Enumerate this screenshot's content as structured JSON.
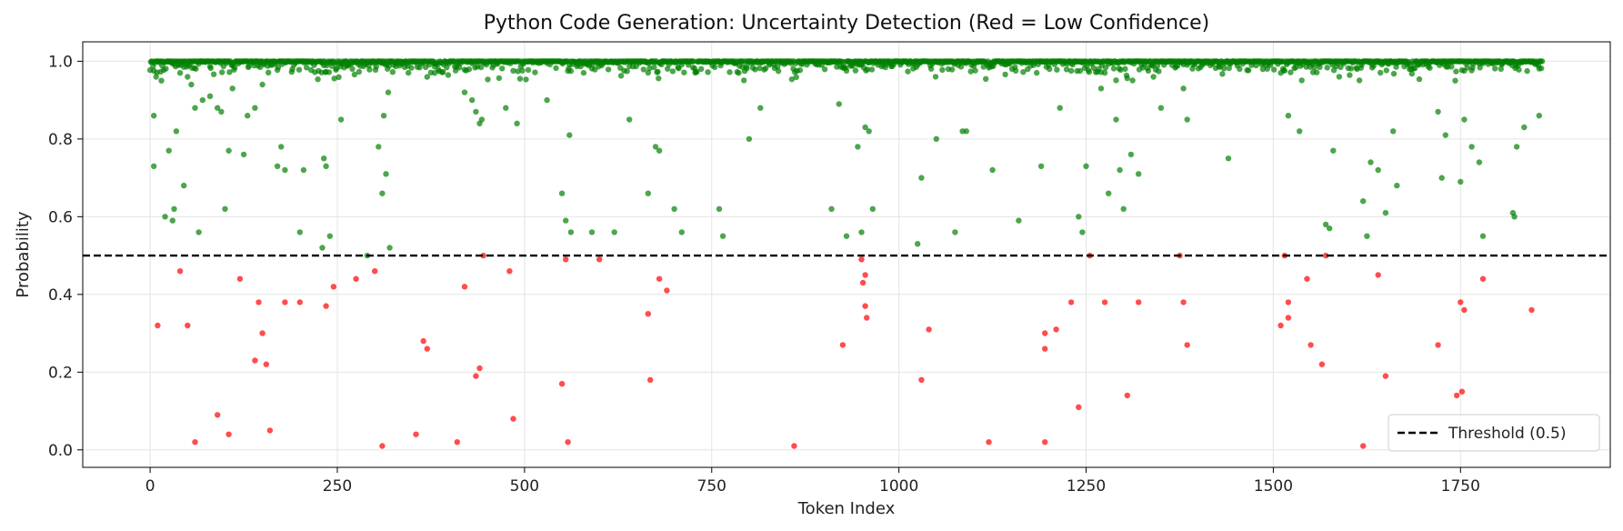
{
  "chart_data": {
    "type": "scatter",
    "title": "Python Code Generation: Uncertainty Detection (Red = Low Confidence)",
    "xlabel": "Token Index",
    "ylabel": "Probability",
    "xlim": [
      -90,
      1950
    ],
    "ylim": [
      -0.045,
      1.05
    ],
    "xticks": [
      0,
      250,
      500,
      750,
      1000,
      1250,
      1500,
      1750
    ],
    "yticks": [
      0.0,
      0.2,
      0.4,
      0.6,
      0.8,
      1.0
    ],
    "ytick_labels": [
      "0.0",
      "0.2",
      "0.4",
      "0.6",
      "0.8",
      "1.0"
    ],
    "grid": true,
    "threshold": 0.5,
    "legend": {
      "placement": "bottom-right",
      "entries": [
        "Threshold (0.5)"
      ]
    },
    "token_count": 1860,
    "colors": {
      "high_confidence": "#008000",
      "low_confidence": "#ff0000",
      "threshold": "#000000"
    },
    "series": [
      {
        "color_key": "high_confidence",
        "points": [
          [
            5,
            0.86
          ],
          [
            5,
            0.73
          ],
          [
            8,
            0.96
          ],
          [
            15,
            0.95
          ],
          [
            20,
            0.6
          ],
          [
            25,
            0.77
          ],
          [
            30,
            0.59
          ],
          [
            32,
            0.62
          ],
          [
            35,
            0.82
          ],
          [
            40,
            0.97
          ],
          [
            45,
            0.68
          ],
          [
            50,
            0.96
          ],
          [
            55,
            0.94
          ],
          [
            60,
            0.88
          ],
          [
            65,
            0.56
          ],
          [
            70,
            0.9
          ],
          [
            80,
            0.91
          ],
          [
            90,
            0.88
          ],
          [
            100,
            0.62
          ],
          [
            95,
            0.87
          ],
          [
            105,
            0.77
          ],
          [
            110,
            0.93
          ],
          [
            125,
            0.76
          ],
          [
            130,
            0.86
          ],
          [
            140,
            0.88
          ],
          [
            150,
            0.94
          ],
          [
            170,
            0.73
          ],
          [
            175,
            0.78
          ],
          [
            180,
            0.72
          ],
          [
            200,
            0.56
          ],
          [
            205,
            0.72
          ],
          [
            230,
            0.52
          ],
          [
            232,
            0.75
          ],
          [
            235,
            0.73
          ],
          [
            240,
            0.55
          ],
          [
            255,
            0.85
          ],
          [
            290,
            0.5
          ],
          [
            305,
            0.78
          ],
          [
            310,
            0.66
          ],
          [
            312,
            0.86
          ],
          [
            315,
            0.71
          ],
          [
            320,
            0.52
          ],
          [
            318,
            0.92
          ],
          [
            380,
            0.97
          ],
          [
            420,
            0.92
          ],
          [
            430,
            0.9
          ],
          [
            435,
            0.87
          ],
          [
            440,
            0.84
          ],
          [
            443,
            0.85
          ],
          [
            475,
            0.88
          ],
          [
            490,
            0.84
          ],
          [
            530,
            0.9
          ],
          [
            550,
            0.66
          ],
          [
            555,
            0.59
          ],
          [
            560,
            0.81
          ],
          [
            562,
            0.56
          ],
          [
            590,
            0.56
          ],
          [
            620,
            0.56
          ],
          [
            640,
            0.85
          ],
          [
            665,
            0.66
          ],
          [
            675,
            0.78
          ],
          [
            680,
            0.77
          ],
          [
            700,
            0.62
          ],
          [
            710,
            0.56
          ],
          [
            760,
            0.62
          ],
          [
            765,
            0.55
          ],
          [
            800,
            0.8
          ],
          [
            815,
            0.88
          ],
          [
            910,
            0.62
          ],
          [
            920,
            0.89
          ],
          [
            930,
            0.55
          ],
          [
            945,
            0.78
          ],
          [
            950,
            0.56
          ],
          [
            955,
            0.83
          ],
          [
            960,
            0.82
          ],
          [
            965,
            0.62
          ],
          [
            1025,
            0.53
          ],
          [
            1030,
            0.7
          ],
          [
            1050,
            0.8
          ],
          [
            1075,
            0.56
          ],
          [
            1085,
            0.82
          ],
          [
            1090,
            0.82
          ],
          [
            1125,
            0.72
          ],
          [
            1160,
            0.59
          ],
          [
            1190,
            0.73
          ],
          [
            1215,
            0.88
          ],
          [
            1240,
            0.6
          ],
          [
            1245,
            0.56
          ],
          [
            1250,
            0.73
          ],
          [
            1270,
            0.93
          ],
          [
            1280,
            0.66
          ],
          [
            1290,
            0.85
          ],
          [
            1295,
            0.72
          ],
          [
            1300,
            0.62
          ],
          [
            1310,
            0.76
          ],
          [
            1320,
            0.71
          ],
          [
            1340,
            0.96
          ],
          [
            1350,
            0.88
          ],
          [
            1380,
            0.93
          ],
          [
            1385,
            0.85
          ],
          [
            1440,
            0.75
          ],
          [
            1510,
            0.97
          ],
          [
            1520,
            0.86
          ],
          [
            1535,
            0.82
          ],
          [
            1570,
            0.58
          ],
          [
            1575,
            0.57
          ],
          [
            1580,
            0.77
          ],
          [
            1620,
            0.64
          ],
          [
            1625,
            0.55
          ],
          [
            1630,
            0.74
          ],
          [
            1640,
            0.72
          ],
          [
            1650,
            0.61
          ],
          [
            1660,
            0.82
          ],
          [
            1665,
            0.68
          ],
          [
            1720,
            0.87
          ],
          [
            1725,
            0.7
          ],
          [
            1730,
            0.81
          ],
          [
            1750,
            0.69
          ],
          [
            1755,
            0.85
          ],
          [
            1765,
            0.78
          ],
          [
            1775,
            0.74
          ],
          [
            1780,
            0.55
          ],
          [
            1820,
            0.61
          ],
          [
            1822,
            0.6
          ],
          [
            1825,
            0.78
          ],
          [
            1835,
            0.83
          ],
          [
            1855,
            0.86
          ]
        ]
      },
      {
        "color_key": "low_confidence",
        "points": [
          [
            10,
            0.32
          ],
          [
            40,
            0.46
          ],
          [
            50,
            0.32
          ],
          [
            60,
            0.02
          ],
          [
            90,
            0.09
          ],
          [
            105,
            0.04
          ],
          [
            120,
            0.44
          ],
          [
            140,
            0.23
          ],
          [
            145,
            0.38
          ],
          [
            150,
            0.3
          ],
          [
            155,
            0.22
          ],
          [
            160,
            0.05
          ],
          [
            180,
            0.38
          ],
          [
            200,
            0.38
          ],
          [
            235,
            0.37
          ],
          [
            245,
            0.42
          ],
          [
            275,
            0.44
          ],
          [
            300,
            0.46
          ],
          [
            310,
            0.01
          ],
          [
            355,
            0.04
          ],
          [
            365,
            0.28
          ],
          [
            370,
            0.26
          ],
          [
            410,
            0.02
          ],
          [
            420,
            0.42
          ],
          [
            435,
            0.19
          ],
          [
            440,
            0.21
          ],
          [
            445,
            0.5
          ],
          [
            480,
            0.46
          ],
          [
            485,
            0.08
          ],
          [
            550,
            0.17
          ],
          [
            555,
            0.49
          ],
          [
            558,
            0.02
          ],
          [
            600,
            0.49
          ],
          [
            665,
            0.35
          ],
          [
            668,
            0.18
          ],
          [
            680,
            0.44
          ],
          [
            690,
            0.41
          ],
          [
            860,
            0.01
          ],
          [
            925,
            0.27
          ],
          [
            950,
            0.49
          ],
          [
            952,
            0.43
          ],
          [
            955,
            0.45
          ],
          [
            955,
            0.37
          ],
          [
            957,
            0.34
          ],
          [
            1030,
            0.18
          ],
          [
            1040,
            0.31
          ],
          [
            1120,
            0.02
          ],
          [
            1195,
            0.26
          ],
          [
            1195,
            0.3
          ],
          [
            1195,
            0.02
          ],
          [
            1210,
            0.31
          ],
          [
            1230,
            0.38
          ],
          [
            1240,
            0.11
          ],
          [
            1255,
            0.5
          ],
          [
            1275,
            0.38
          ],
          [
            1305,
            0.14
          ],
          [
            1320,
            0.38
          ],
          [
            1375,
            0.5
          ],
          [
            1380,
            0.38
          ],
          [
            1385,
            0.27
          ],
          [
            1510,
            0.32
          ],
          [
            1515,
            0.5
          ],
          [
            1520,
            0.38
          ],
          [
            1520,
            0.34
          ],
          [
            1545,
            0.44
          ],
          [
            1550,
            0.27
          ],
          [
            1565,
            0.22
          ],
          [
            1570,
            0.5
          ],
          [
            1620,
            0.01
          ],
          [
            1640,
            0.45
          ],
          [
            1650,
            0.19
          ],
          [
            1720,
            0.27
          ],
          [
            1745,
            0.14
          ],
          [
            1750,
            0.38
          ],
          [
            1752,
            0.15
          ],
          [
            1755,
            0.36
          ],
          [
            1780,
            0.44
          ],
          [
            1845,
            0.36
          ]
        ]
      }
    ]
  }
}
